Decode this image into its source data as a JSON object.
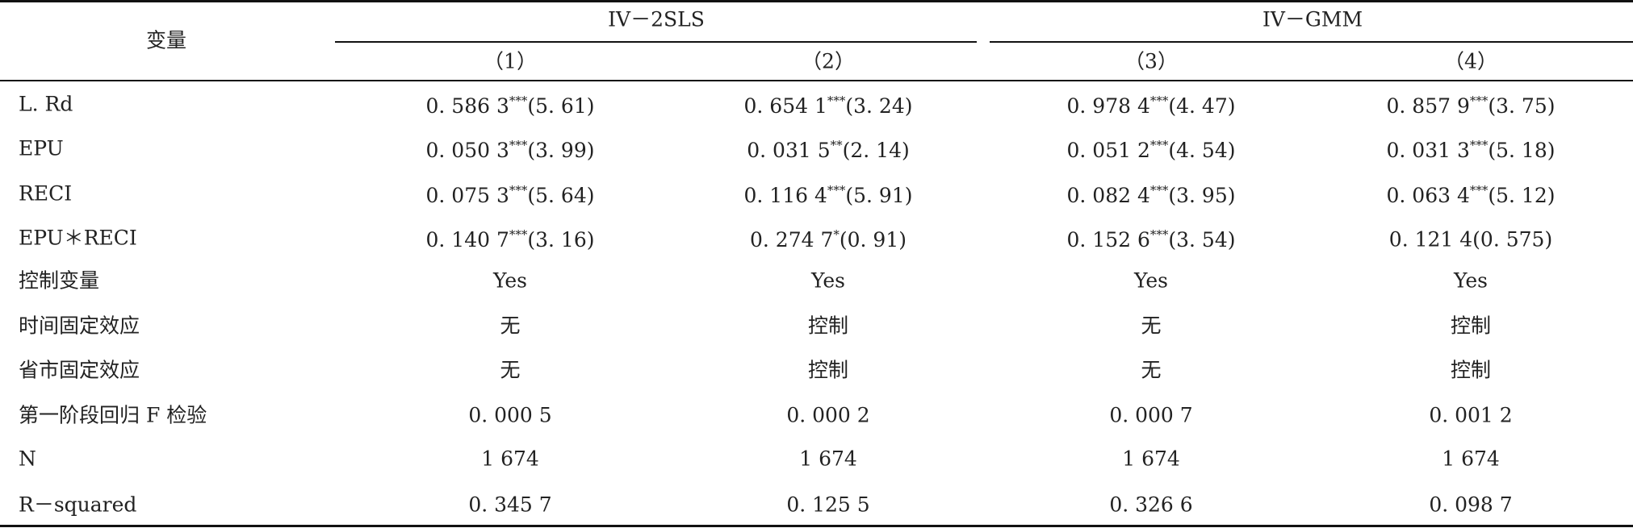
{
  "header": {
    "variable": "变量",
    "groups": [
      {
        "label": "IV－2SLS",
        "columns": [
          "（1）",
          "（2）"
        ]
      },
      {
        "label": "IV－GMM",
        "columns": [
          "（3）",
          "（4）"
        ]
      }
    ]
  },
  "table": {
    "rows": [
      {
        "label": "L. Rd",
        "cells": [
          {
            "coef": "0. 586 3",
            "stars": "***",
            "t": "(5. 61)"
          },
          {
            "coef": "0. 654 1",
            "stars": "***",
            "t": "(3. 24)"
          },
          {
            "coef": "0. 978 4",
            "stars": "***",
            "t": "(4. 47)"
          },
          {
            "coef": "0. 857 9",
            "stars": "***",
            "t": "(3. 75)"
          }
        ]
      },
      {
        "label": "EPU",
        "cells": [
          {
            "coef": "0. 050 3",
            "stars": "***",
            "t": "(3. 99)"
          },
          {
            "coef": "0. 031 5",
            "stars": "**",
            "t": "(2. 14)"
          },
          {
            "coef": "0. 051 2",
            "stars": "***",
            "t": "(4. 54)"
          },
          {
            "coef": "0. 031 3",
            "stars": "***",
            "t": "(5. 18)"
          }
        ]
      },
      {
        "label": "RECI",
        "cells": [
          {
            "coef": "0. 075 3",
            "stars": "***",
            "t": "(5. 64)"
          },
          {
            "coef": "0. 116 4",
            "stars": "***",
            "t": "(5. 91)"
          },
          {
            "coef": "0. 082 4",
            "stars": "***",
            "t": "(3. 95)"
          },
          {
            "coef": "0. 063 4",
            "stars": "***",
            "t": "(5. 12)"
          }
        ]
      },
      {
        "label": "EPU＊RECI",
        "cells": [
          {
            "coef": "0. 140 7",
            "stars": "***",
            "t": "(3. 16)"
          },
          {
            "coef": "0. 274 7",
            "stars": "*",
            "t": "(0. 91)"
          },
          {
            "coef": "0. 152 6",
            "stars": "***",
            "t": "(3. 54)"
          },
          {
            "coef": "0. 121 4",
            "t": "(0. 575)"
          }
        ]
      },
      {
        "label": "控制变量",
        "cells": [
          "Yes",
          "Yes",
          "Yes",
          "Yes"
        ]
      },
      {
        "label": "时间固定效应",
        "cells": [
          "无",
          "控制",
          "无",
          "控制"
        ]
      },
      {
        "label": "省市固定效应",
        "cells": [
          "无",
          "控制",
          "无",
          "控制"
        ]
      },
      {
        "label": "第一阶段回归 F 检验",
        "cells": [
          "0. 000 5",
          "0. 000 2",
          "0. 000 7",
          "0. 001 2"
        ]
      },
      {
        "label": "N",
        "cells": [
          "1 674",
          "1 674",
          "1 674",
          "1 674"
        ]
      },
      {
        "label": "R－squared",
        "cells": [
          "0. 345 7",
          "0. 125 5",
          "0. 326 6",
          "0. 098 7"
        ]
      }
    ]
  }
}
